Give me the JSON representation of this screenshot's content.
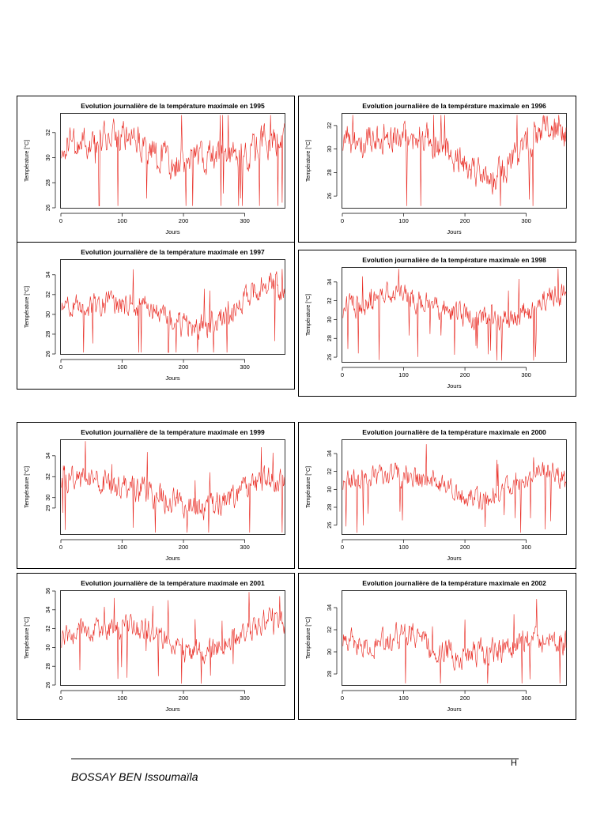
{
  "page": {
    "footer_mark": "H",
    "author": "BOSSAY BEN Issoumaïla"
  },
  "colors": {
    "series": "#e8231b",
    "axis": "#000000",
    "text": "#000000"
  },
  "chart_data": [
    {
      "type": "line",
      "year": 1995,
      "title": "Evolution journalière de la température maximale en 1995",
      "xlabel": "Jours",
      "ylabel": "Température [°C]",
      "xlim": [
        0,
        365
      ],
      "ylim": [
        26,
        33.5
      ],
      "xticks": [
        0,
        100,
        200,
        300
      ],
      "yticks": [
        26,
        28,
        30,
        32
      ],
      "ytick_labels": [
        "26",
        "28",
        "30",
        "32"
      ],
      "n_points": 365,
      "trend": [
        [
          0,
          31
        ],
        [
          40,
          31.3
        ],
        [
          80,
          31.6
        ],
        [
          100,
          31.8
        ],
        [
          140,
          31
        ],
        [
          180,
          29.5
        ],
        [
          220,
          29.8
        ],
        [
          260,
          30.3
        ],
        [
          300,
          30.2
        ],
        [
          330,
          31.2
        ],
        [
          365,
          31.9
        ]
      ],
      "amplitude": 1.3,
      "seed": 1995
    },
    {
      "type": "line",
      "year": 1996,
      "title": "Evolution journalière de la température maximale en 1996",
      "xlabel": "Jours",
      "ylabel": "Température [°C]",
      "xlim": [
        0,
        365
      ],
      "ylim": [
        25,
        33
      ],
      "xticks": [
        0,
        100,
        200,
        300
      ],
      "yticks": [
        26,
        28,
        30,
        32
      ],
      "ytick_labels": [
        "26",
        "28",
        "30",
        "32"
      ],
      "n_points": 365,
      "trend": [
        [
          0,
          31
        ],
        [
          50,
          30.6
        ],
        [
          100,
          31
        ],
        [
          150,
          30.7
        ],
        [
          200,
          28.8
        ],
        [
          240,
          27.5
        ],
        [
          280,
          29
        ],
        [
          310,
          31
        ],
        [
          330,
          31.8
        ],
        [
          365,
          31.2
        ]
      ],
      "amplitude": 1.4,
      "seed": 1996
    },
    {
      "type": "line",
      "year": 1997,
      "title": "Evolution journalière de la température maximale en 1997",
      "xlabel": "Jours",
      "ylabel": "Température [°C]",
      "xlim": [
        0,
        365
      ],
      "ylim": [
        26,
        35.5
      ],
      "xticks": [
        0,
        100,
        200,
        300
      ],
      "yticks": [
        26,
        28,
        30,
        32,
        34
      ],
      "ytick_labels": [
        "26",
        "28",
        "30",
        "32",
        "34"
      ],
      "n_points": 365,
      "trend": [
        [
          0,
          31.5
        ],
        [
          40,
          30.5
        ],
        [
          80,
          31.3
        ],
        [
          120,
          31
        ],
        [
          170,
          30
        ],
        [
          200,
          28.8
        ],
        [
          240,
          29
        ],
        [
          280,
          30.5
        ],
        [
          320,
          32.5
        ],
        [
          340,
          33.5
        ],
        [
          365,
          31.8
        ]
      ],
      "amplitude": 1.3,
      "seed": 1997
    },
    {
      "type": "line",
      "year": 1998,
      "title": "Evolution journalière de la température maximale en 1998",
      "xlabel": "Jours",
      "ylabel": "Température [°C]",
      "xlim": [
        0,
        365
      ],
      "ylim": [
        25.5,
        35.5
      ],
      "xticks": [
        0,
        100,
        200,
        300
      ],
      "yticks": [
        26,
        28,
        30,
        32,
        34
      ],
      "ytick_labels": [
        "26",
        "28",
        "30",
        "32",
        "34"
      ],
      "n_points": 365,
      "trend": [
        [
          0,
          31.2
        ],
        [
          50,
          32
        ],
        [
          90,
          32.8
        ],
        [
          120,
          32.2
        ],
        [
          180,
          30.8
        ],
        [
          220,
          30.2
        ],
        [
          260,
          30
        ],
        [
          300,
          30.7
        ],
        [
          340,
          32.6
        ],
        [
          365,
          32.6
        ]
      ],
      "amplitude": 1.3,
      "seed": 1998
    },
    {
      "type": "line",
      "year": 1999,
      "title": "Evolution journalière de la température maximale en 1999",
      "xlabel": "Jours",
      "ylabel": "Température [°C]",
      "xlim": [
        0,
        365
      ],
      "ylim": [
        26.5,
        35.5
      ],
      "xticks": [
        0,
        100,
        200,
        300
      ],
      "yticks": [
        29,
        30,
        32,
        34
      ],
      "ytick_labels": [
        "29",
        "30",
        "32",
        "34"
      ],
      "n_points": 365,
      "trend": [
        [
          0,
          32
        ],
        [
          40,
          31.8
        ],
        [
          80,
          31.2
        ],
        [
          130,
          30.6
        ],
        [
          180,
          29.8
        ],
        [
          220,
          29.2
        ],
        [
          260,
          29.3
        ],
        [
          300,
          30.8
        ],
        [
          330,
          31.6
        ],
        [
          365,
          31.2
        ]
      ],
      "amplitude": 1.3,
      "seed": 1999
    },
    {
      "type": "line",
      "year": 2000,
      "title": "Evolution journalière de la température maximale en 2000",
      "xlabel": "Jours",
      "ylabel": "Température [°C]",
      "xlim": [
        0,
        365
      ],
      "ylim": [
        25,
        35.5
      ],
      "xticks": [
        0,
        100,
        200,
        300
      ],
      "yticks": [
        26,
        28,
        30,
        32,
        34
      ],
      "ytick_labels": [
        "26",
        "28",
        "30",
        "32",
        "34"
      ],
      "n_points": 365,
      "trend": [
        [
          0,
          31
        ],
        [
          50,
          31.2
        ],
        [
          100,
          31.6
        ],
        [
          150,
          30.7
        ],
        [
          200,
          29
        ],
        [
          240,
          29
        ],
        [
          270,
          30.2
        ],
        [
          310,
          32
        ],
        [
          340,
          32.2
        ],
        [
          365,
          30.6
        ]
      ],
      "amplitude": 1.3,
      "seed": 2000
    },
    {
      "type": "line",
      "year": 2001,
      "title": "Evolution journalière de la température maximale en 2001",
      "xlabel": "Jours",
      "ylabel": "Température [°C]",
      "xlim": [
        0,
        365
      ],
      "ylim": [
        26,
        36
      ],
      "xticks": [
        0,
        100,
        200,
        300
      ],
      "yticks": [
        26,
        28,
        30,
        32,
        34,
        36
      ],
      "ytick_labels": [
        "26",
        "28",
        "30",
        "32",
        "34",
        "36"
      ],
      "n_points": 365,
      "trend": [
        [
          0,
          31
        ],
        [
          50,
          31.8
        ],
        [
          100,
          32.2
        ],
        [
          150,
          31.8
        ],
        [
          200,
          29.6
        ],
        [
          240,
          29.6
        ],
        [
          280,
          30.8
        ],
        [
          320,
          32.5
        ],
        [
          350,
          33.5
        ],
        [
          365,
          32.5
        ]
      ],
      "amplitude": 1.3,
      "seed": 2001
    },
    {
      "type": "line",
      "year": 2002,
      "title": "Evolution journalière de la température maximale en 2002",
      "xlabel": "Jours",
      "ylabel": "Température [°C]",
      "xlim": [
        0,
        365
      ],
      "ylim": [
        27,
        35.5
      ],
      "xticks": [
        0,
        100,
        200,
        300
      ],
      "yticks": [
        28,
        30,
        32,
        34
      ],
      "ytick_labels": [
        "28",
        "30",
        "32",
        "34"
      ],
      "n_points": 365,
      "trend": [
        [
          0,
          31.5
        ],
        [
          40,
          30.5
        ],
        [
          80,
          31.2
        ],
        [
          110,
          31.8
        ],
        [
          150,
          30.2
        ],
        [
          200,
          29.8
        ],
        [
          250,
          30
        ],
        [
          300,
          31
        ],
        [
          330,
          31.2
        ],
        [
          365,
          30.8
        ]
      ],
      "amplitude": 1.2,
      "seed": 2002
    }
  ]
}
